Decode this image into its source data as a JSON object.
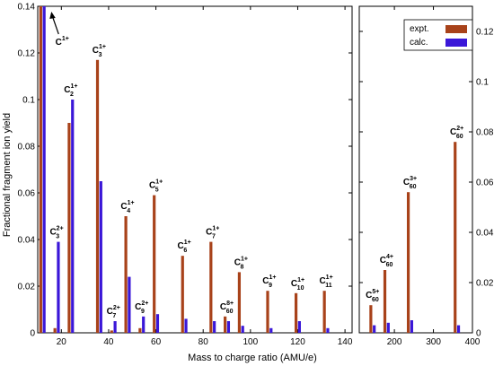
{
  "chart_data": {
    "type": "bar",
    "ylabel": "Fractional fragment ion yield",
    "xlabel": "Mass to charge ratio (AMU/e)",
    "legend": {
      "placement": "top-right of right panel",
      "entries": [
        {
          "name": "expt.",
          "color": "#a8421a"
        },
        {
          "name": "calc.",
          "color": "#3a17d8"
        }
      ]
    },
    "panels": [
      {
        "name": "left",
        "xlim": [
          10,
          143
        ],
        "ylim": [
          0,
          0.14
        ],
        "xticks": [
          "20",
          "40",
          "60",
          "80",
          "100",
          "120",
          "140"
        ],
        "xtick_values": [
          20,
          40,
          60,
          80,
          100,
          120,
          140
        ],
        "yticks": [
          "0",
          "0.02",
          "0.04",
          "0.06",
          "0.08",
          "0.1",
          "0.12",
          "0.14"
        ],
        "ytick_values": [
          0,
          0.02,
          0.04,
          0.06,
          0.08,
          0.1,
          0.12,
          0.14
        ],
        "peaks": [
          {
            "mz": 12,
            "expt": 0.14,
            "calc": 0.14,
            "label": "C",
            "sup": "1+",
            "sub": ""
          },
          {
            "mz": 24,
            "expt": 0.09,
            "calc": 0.1,
            "label": "C",
            "sup": "1+",
            "sub": "2"
          },
          {
            "mz": 36,
            "expt": 0.117,
            "calc": 0.065,
            "label": "C",
            "sup": "1+",
            "sub": "3"
          },
          {
            "mz": 18,
            "expt": 0.002,
            "calc": 0.039,
            "label": "C",
            "sup": "2+",
            "sub": "3"
          },
          {
            "mz": 48,
            "expt": 0.05,
            "calc": 0.024,
            "label": "C",
            "sup": "1+",
            "sub": "4"
          },
          {
            "mz": 42,
            "expt": 0.001,
            "calc": 0.005,
            "label": "C",
            "sup": "2+",
            "sub": "7"
          },
          {
            "mz": 54,
            "expt": 0.002,
            "calc": 0.007,
            "label": "C",
            "sup": "2+",
            "sub": "9"
          },
          {
            "mz": 60,
            "expt": 0.059,
            "calc": 0.008,
            "label": "C",
            "sup": "1+",
            "sub": "5"
          },
          {
            "mz": 72,
            "expt": 0.033,
            "calc": 0.006,
            "label": "C",
            "sup": "1+",
            "sub": "6"
          },
          {
            "mz": 84,
            "expt": 0.039,
            "calc": 0.005,
            "label": "C",
            "sup": "1+",
            "sub": "7"
          },
          {
            "mz": 90,
            "expt": 0.007,
            "calc": 0.005,
            "label": "C",
            "sup": "8+",
            "sub": "60"
          },
          {
            "mz": 96,
            "expt": 0.026,
            "calc": 0.003,
            "label": "C",
            "sup": "1+",
            "sub": "8"
          },
          {
            "mz": 108,
            "expt": 0.018,
            "calc": 0.002,
            "label": "C",
            "sup": "1+",
            "sub": "9"
          },
          {
            "mz": 120,
            "expt": 0.017,
            "calc": 0.005,
            "label": "C",
            "sup": "1+",
            "sub": "10"
          },
          {
            "mz": 132,
            "expt": 0.018,
            "calc": 0.002,
            "label": "C",
            "sup": "1+",
            "sub": "11"
          }
        ]
      },
      {
        "name": "right",
        "xlim": [
          110,
          400
        ],
        "ylim": [
          0,
          0.13
        ],
        "xticks": [
          "200",
          "300",
          "400"
        ],
        "xtick_values": [
          200,
          300,
          400
        ],
        "yticks": [
          "0",
          "0.02",
          "0.04",
          "0.06",
          "0.08",
          "0.1",
          "0.12"
        ],
        "ytick_values": [
          0,
          0.02,
          0.04,
          0.06,
          0.08,
          0.1,
          0.12
        ],
        "peaks": [
          {
            "mz": 144,
            "expt": 0.011,
            "calc": 0.003,
            "label": "C",
            "sup": "5+",
            "sub": "60"
          },
          {
            "mz": 180,
            "expt": 0.025,
            "calc": 0.004,
            "label": "C",
            "sup": "4+",
            "sub": "60"
          },
          {
            "mz": 240,
            "expt": 0.056,
            "calc": 0.005,
            "label": "C",
            "sup": "3+",
            "sub": "60"
          },
          {
            "mz": 360,
            "expt": 0.076,
            "calc": 0.003,
            "label": "C",
            "sup": "2+",
            "sub": "60"
          }
        ]
      }
    ]
  }
}
